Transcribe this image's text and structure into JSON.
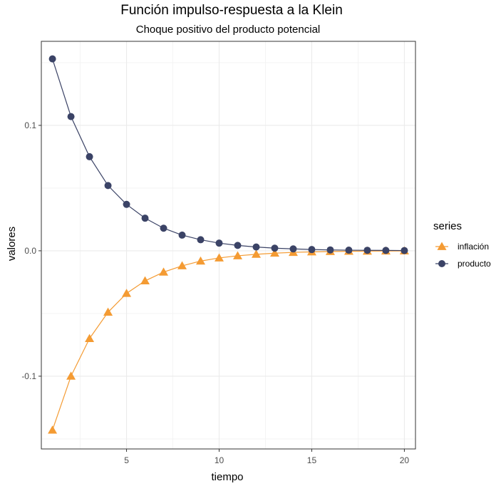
{
  "chart_data": {
    "type": "line",
    "title": "Función impulso-respuesta a la Klein",
    "subtitle": "Choque positivo del producto potencial",
    "xlabel": "tiempo",
    "ylabel": "valores",
    "x": [
      1,
      2,
      3,
      4,
      5,
      6,
      7,
      8,
      9,
      10,
      11,
      12,
      13,
      14,
      15,
      16,
      17,
      18,
      19,
      20
    ],
    "xlim": [
      0.4,
      20.6
    ],
    "ylim": [
      -0.158,
      0.167
    ],
    "xticks": [
      5,
      10,
      15,
      20
    ],
    "yticks": [
      -0.1,
      0.0,
      0.1
    ],
    "xtick_labels": [
      "5",
      "10",
      "15",
      "20"
    ],
    "ytick_labels": [
      "-0.1",
      "0.0",
      "0.1"
    ],
    "grid": true,
    "legend": {
      "title": "series",
      "position": "right"
    },
    "series": [
      {
        "name": "inflación",
        "marker": "triangle",
        "color": "#F49B33",
        "values": [
          -0.143,
          -0.1,
          -0.07,
          -0.049,
          -0.034,
          -0.024,
          -0.017,
          -0.012,
          -0.0082,
          -0.0057,
          -0.004,
          -0.0028,
          -0.0019,
          -0.0013,
          -0.0009,
          -0.0006,
          -0.0004,
          -0.0003,
          -0.0002,
          -0.0001
        ]
      },
      {
        "name": "producto",
        "marker": "circle",
        "color": "#3B4366",
        "values": [
          0.153,
          0.107,
          0.075,
          0.052,
          0.037,
          0.026,
          0.018,
          0.0125,
          0.0088,
          0.0061,
          0.0043,
          0.003,
          0.0021,
          0.0015,
          0.001,
          0.0007,
          0.0005,
          0.0004,
          0.0003,
          0.0002
        ]
      }
    ]
  }
}
